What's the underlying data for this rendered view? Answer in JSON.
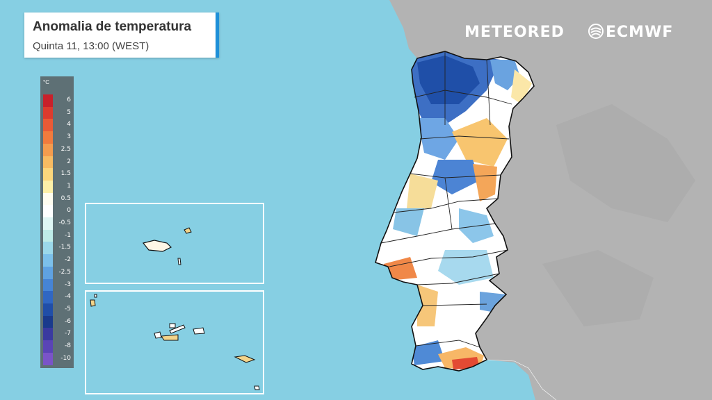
{
  "header": {
    "title": "Anomalia de temperatura",
    "subtitle": "Quinta 11, 13:00 (WEST)"
  },
  "logos": {
    "meteored": "METEORED",
    "ecmwf": "ECMWF"
  },
  "legend": {
    "unit": "°C",
    "steps": [
      {
        "label": "6",
        "color": "#c8202a"
      },
      {
        "label": "5",
        "color": "#dc3b2e"
      },
      {
        "label": "4",
        "color": "#ea5a36"
      },
      {
        "label": "3",
        "color": "#f27b3d"
      },
      {
        "label": "2.5",
        "color": "#f59c4e"
      },
      {
        "label": "2",
        "color": "#f8bb62"
      },
      {
        "label": "1.5",
        "color": "#fbd67c"
      },
      {
        "label": "1",
        "color": "#fdf0a8"
      },
      {
        "label": "0.5",
        "color": "#fffdf0"
      },
      {
        "label": "0",
        "color": "#ffffff"
      },
      {
        "label": "-0.5",
        "color": "#dff6f4"
      },
      {
        "label": "-1",
        "color": "#bfece8"
      },
      {
        "label": "-1.5",
        "color": "#9bd8ea"
      },
      {
        "label": "-2",
        "color": "#7cc0ea"
      },
      {
        "label": "-2.5",
        "color": "#5fa2e2"
      },
      {
        "label": "-3",
        "color": "#4684d6"
      },
      {
        "label": "-4",
        "color": "#3067c3"
      },
      {
        "label": "-5",
        "color": "#204ea8"
      },
      {
        "label": "-6",
        "color": "#1a3a8c"
      },
      {
        "label": "-7",
        "color": "#3a3aa0"
      },
      {
        "label": "-8",
        "color": "#5a44b6"
      },
      {
        "label": "-10",
        "color": "#7a54c8"
      }
    ]
  },
  "colors": {
    "ocean": "#86cfe3",
    "land": "#b3b3b3",
    "accent": "#1e90d8"
  }
}
